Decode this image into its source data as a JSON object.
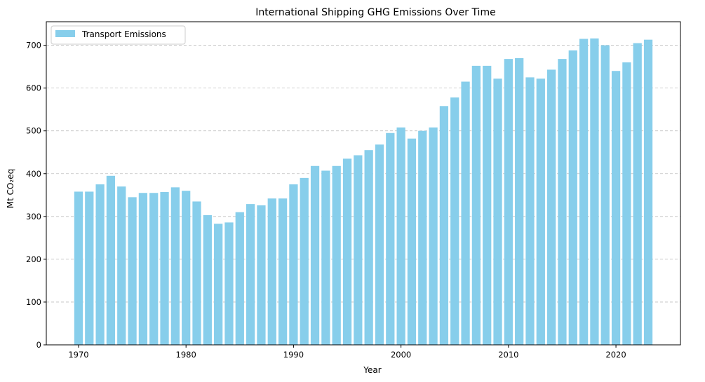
{
  "chart_data": {
    "type": "bar",
    "title": "International Shipping GHG Emissions Over Time",
    "xlabel": "Year",
    "ylabel": "Mt CO₂eq",
    "legend": {
      "entries": [
        "Transport Emissions"
      ],
      "placement": "top-left"
    },
    "grid": {
      "y": true,
      "x": false,
      "style": "dashed"
    },
    "xlim": [
      1967,
      2026
    ],
    "ylim": [
      0,
      755
    ],
    "xticks": [
      1970,
      1980,
      1990,
      2000,
      2010,
      2020
    ],
    "yticks": [
      0,
      100,
      200,
      300,
      400,
      500,
      600,
      700
    ],
    "bar_color": "#87CEEB",
    "series": [
      {
        "name": "Transport Emissions",
        "x": [
          1970,
          1971,
          1972,
          1973,
          1974,
          1975,
          1976,
          1977,
          1978,
          1979,
          1980,
          1981,
          1982,
          1983,
          1984,
          1985,
          1986,
          1987,
          1988,
          1989,
          1990,
          1991,
          1992,
          1993,
          1994,
          1995,
          1996,
          1997,
          1998,
          1999,
          2000,
          2001,
          2002,
          2003,
          2004,
          2005,
          2006,
          2007,
          2008,
          2009,
          2010,
          2011,
          2012,
          2013,
          2014,
          2015,
          2016,
          2017,
          2018,
          2019,
          2020,
          2021,
          2022,
          2023
        ],
        "values": [
          358,
          358,
          375,
          395,
          370,
          345,
          355,
          355,
          357,
          368,
          360,
          335,
          303,
          283,
          286,
          310,
          329,
          326,
          342,
          342,
          375,
          390,
          418,
          407,
          418,
          435,
          443,
          455,
          468,
          495,
          508,
          482,
          500,
          508,
          558,
          578,
          615,
          652,
          652,
          622,
          668,
          670,
          625,
          622,
          643,
          668,
          688,
          715,
          716,
          700,
          640,
          660,
          705,
          713
        ]
      }
    ]
  }
}
